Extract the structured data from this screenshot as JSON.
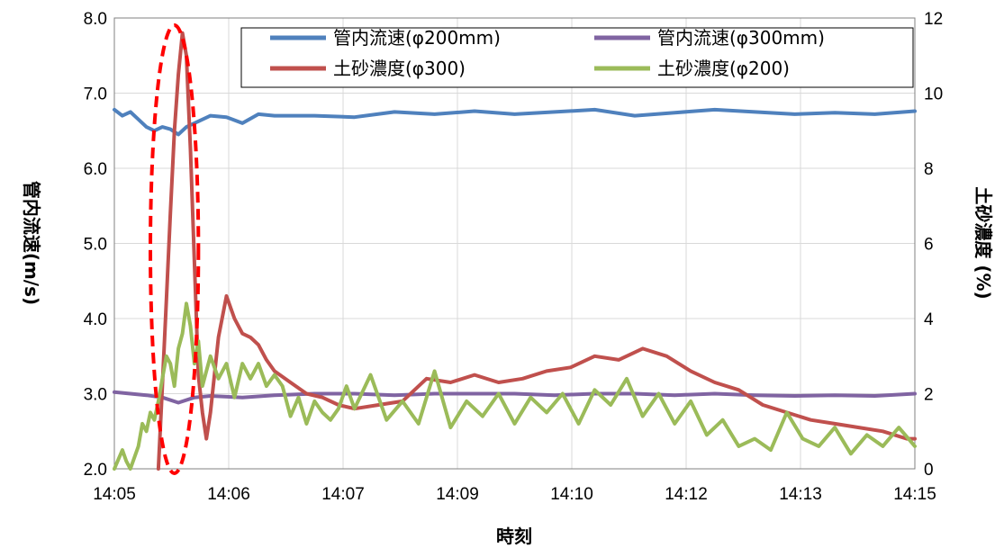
{
  "chart_data": {
    "type": "line",
    "xlabel": "時刻",
    "ylabel_left": "管内流速(m/s)",
    "ylabel_right": "土砂濃度 (%)",
    "x_tick_labels": [
      "14:05",
      "14:06",
      "14:07",
      "14:09",
      "14:10",
      "14:12",
      "14:13",
      "14:15"
    ],
    "x_range_minutes": [
      0,
      10
    ],
    "ylim_left": [
      2.0,
      8.0
    ],
    "yticks_left": [
      "2.0",
      "3.0",
      "4.0",
      "5.0",
      "6.0",
      "7.0",
      "8.0"
    ],
    "ylim_right": [
      0,
      12
    ],
    "yticks_right": [
      "0",
      "2",
      "4",
      "6",
      "8",
      "10",
      "12"
    ],
    "grid": true,
    "legend_position": "top-right",
    "highlight": {
      "shape": "dashed-ellipse",
      "color": "#ff0000",
      "around_minutes": [
        0.45,
        1.05
      ]
    },
    "series": [
      {
        "name": "管内流速(φ200mm)",
        "axis": "left",
        "color": "#4f81bd",
        "x": [
          0,
          0.1,
          0.2,
          0.3,
          0.4,
          0.5,
          0.6,
          0.7,
          0.8,
          0.9,
          1.0,
          1.2,
          1.4,
          1.6,
          1.8,
          2.0,
          2.5,
          3.0,
          3.5,
          4.0,
          4.5,
          5.0,
          5.5,
          6.0,
          6.5,
          7.0,
          7.5,
          8.0,
          8.5,
          9.0,
          9.5,
          10.0
        ],
        "values": [
          6.78,
          6.7,
          6.75,
          6.65,
          6.55,
          6.5,
          6.55,
          6.52,
          6.45,
          6.55,
          6.6,
          6.7,
          6.68,
          6.6,
          6.72,
          6.7,
          6.7,
          6.68,
          6.75,
          6.72,
          6.76,
          6.72,
          6.75,
          6.78,
          6.7,
          6.74,
          6.78,
          6.75,
          6.72,
          6.74,
          6.72,
          6.76
        ]
      },
      {
        "name": "管内流速(φ300mm)",
        "axis": "left",
        "color": "#8064a2",
        "x": [
          0,
          0.2,
          0.4,
          0.6,
          0.8,
          1.0,
          1.2,
          1.6,
          2.0,
          2.5,
          3.0,
          3.5,
          4.0,
          4.5,
          5.0,
          5.5,
          6.0,
          6.5,
          7.0,
          7.5,
          8.0,
          8.5,
          9.0,
          9.5,
          10.0
        ],
        "values": [
          3.02,
          3.0,
          2.98,
          2.95,
          2.88,
          2.95,
          2.97,
          2.95,
          2.98,
          3.0,
          3.0,
          2.98,
          3.0,
          3.0,
          3.0,
          2.98,
          3.0,
          3.0,
          2.98,
          3.0,
          2.98,
          2.97,
          2.98,
          2.97,
          3.0
        ]
      },
      {
        "name": "土砂濃度(φ300)",
        "axis": "right",
        "color": "#c0504d",
        "x": [
          0.55,
          0.6,
          0.65,
          0.7,
          0.75,
          0.8,
          0.85,
          0.9,
          0.95,
          1.0,
          1.05,
          1.1,
          1.15,
          1.2,
          1.3,
          1.4,
          1.5,
          1.6,
          1.7,
          1.8,
          1.9,
          2.0,
          2.2,
          2.4,
          2.6,
          2.8,
          3.0,
          3.3,
          3.6,
          3.9,
          4.2,
          4.5,
          4.8,
          5.1,
          5.4,
          5.7,
          6.0,
          6.3,
          6.6,
          6.9,
          7.2,
          7.5,
          7.8,
          8.1,
          8.4,
          8.7,
          9.0,
          9.3,
          9.6,
          9.9,
          10.0
        ],
        "values": [
          0.0,
          2.2,
          4.5,
          6.8,
          9.0,
          10.5,
          11.6,
          11.0,
          8.5,
          5.5,
          2.5,
          1.5,
          0.8,
          1.5,
          3.5,
          4.6,
          4.0,
          3.6,
          3.5,
          3.3,
          2.9,
          2.6,
          2.3,
          2.0,
          1.9,
          1.7,
          1.6,
          1.7,
          1.8,
          2.4,
          2.3,
          2.5,
          2.3,
          2.4,
          2.6,
          2.7,
          3.0,
          2.9,
          3.2,
          3.0,
          2.6,
          2.3,
          2.1,
          1.7,
          1.5,
          1.3,
          1.2,
          1.1,
          1.0,
          0.8,
          0.8
        ]
      },
      {
        "name": "土砂濃度(φ200)",
        "axis": "right",
        "color": "#9bbb59",
        "x": [
          0,
          0.1,
          0.15,
          0.2,
          0.3,
          0.35,
          0.4,
          0.45,
          0.5,
          0.55,
          0.6,
          0.65,
          0.7,
          0.75,
          0.8,
          0.85,
          0.9,
          0.95,
          1.0,
          1.05,
          1.1,
          1.15,
          1.2,
          1.3,
          1.4,
          1.5,
          1.6,
          1.7,
          1.8,
          1.9,
          2.0,
          2.1,
          2.2,
          2.3,
          2.4,
          2.5,
          2.6,
          2.7,
          2.8,
          2.9,
          3.0,
          3.2,
          3.4,
          3.6,
          3.8,
          4.0,
          4.2,
          4.4,
          4.6,
          4.8,
          5.0,
          5.2,
          5.4,
          5.6,
          5.8,
          6.0,
          6.2,
          6.4,
          6.6,
          6.8,
          7.0,
          7.2,
          7.4,
          7.6,
          7.8,
          8.0,
          8.2,
          8.4,
          8.6,
          8.8,
          9.0,
          9.2,
          9.4,
          9.6,
          9.8,
          10.0
        ],
        "values": [
          0.0,
          0.5,
          0.2,
          0.0,
          0.6,
          1.2,
          1.0,
          1.5,
          1.3,
          1.8,
          2.4,
          3.0,
          2.8,
          2.2,
          3.2,
          3.6,
          4.4,
          3.8,
          2.8,
          3.4,
          2.2,
          2.6,
          3.0,
          2.4,
          2.8,
          1.9,
          2.8,
          2.4,
          2.8,
          2.2,
          2.5,
          2.2,
          1.4,
          1.9,
          1.2,
          1.8,
          1.5,
          1.3,
          1.6,
          2.2,
          1.6,
          2.5,
          1.3,
          1.8,
          1.2,
          2.6,
          1.1,
          1.8,
          1.4,
          2.0,
          1.2,
          1.9,
          1.5,
          2.0,
          1.2,
          2.1,
          1.7,
          2.4,
          1.4,
          2.0,
          1.2,
          1.8,
          0.9,
          1.3,
          0.6,
          0.8,
          0.5,
          1.5,
          0.8,
          0.6,
          1.1,
          0.4,
          0.9,
          0.6,
          1.1,
          0.6
        ]
      }
    ]
  }
}
